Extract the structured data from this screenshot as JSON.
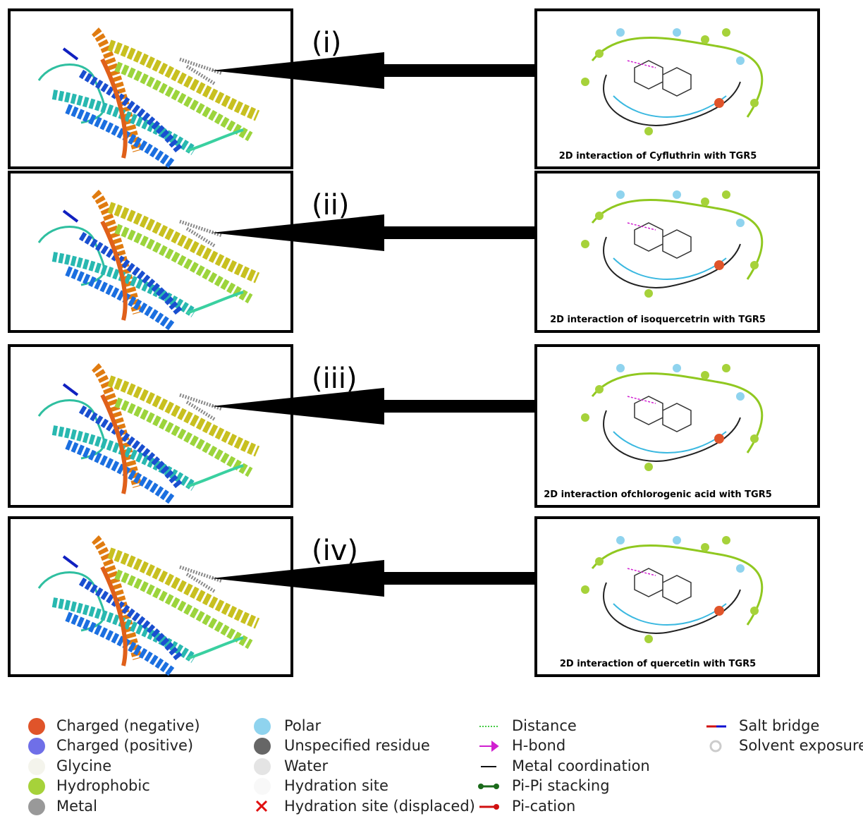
{
  "panels": [
    {
      "label": "(i)",
      "caption": "2D interaction of Cyfluthrin with TGR5"
    },
    {
      "label": "(ii)",
      "caption": "2D interaction of isoquercetrin with TGR5"
    },
    {
      "label": "(iii)",
      "caption": "2D interaction ofchlorogenic acid with TGR5"
    },
    {
      "label": "(iv)",
      "caption": "2D interaction of quercetin with TGR5"
    }
  ],
  "legend": [
    [
      "Charged (negative)",
      "Charged (positive)",
      "Glycine",
      "Hydrophobic",
      "Metal"
    ],
    [
      "Polar",
      "Unspecified residue",
      "Water",
      "Hydration site",
      "Hydration site (displaced)"
    ],
    [
      "Distance",
      "H-bond",
      "Metal coordination",
      "Pi-Pi stacking",
      "Pi-cation"
    ],
    [
      "Salt bridge",
      "Solvent exposure"
    ]
  ]
}
